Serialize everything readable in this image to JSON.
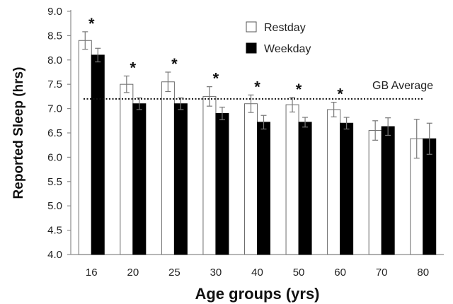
{
  "chart_data": {
    "type": "bar",
    "title": "",
    "xlabel": "Age groups (yrs)",
    "ylabel": "Reported Sleep (hrs)",
    "ylim": [
      4.0,
      9.0
    ],
    "yticks": [
      "4.0",
      "4.5",
      "5.0",
      "5.5",
      "6.0",
      "6.5",
      "7.0",
      "7.5",
      "8.0",
      "8.5",
      "9.0"
    ],
    "categories": [
      "16",
      "20",
      "25",
      "30",
      "40",
      "50",
      "60",
      "70",
      "80"
    ],
    "series": [
      {
        "name": "Restday",
        "fill": "#ffffff",
        "values": [
          8.4,
          7.5,
          7.55,
          7.25,
          7.1,
          7.08,
          6.98,
          6.55,
          6.38
        ],
        "errors": [
          0.18,
          0.17,
          0.2,
          0.2,
          0.18,
          0.15,
          0.15,
          0.2,
          0.4
        ]
      },
      {
        "name": "Weekday",
        "fill": "#000000",
        "values": [
          8.1,
          7.1,
          7.1,
          6.9,
          6.72,
          6.72,
          6.7,
          6.63,
          6.38
        ],
        "errors": [
          0.14,
          0.12,
          0.12,
          0.13,
          0.14,
          0.1,
          0.12,
          0.18,
          0.32
        ]
      }
    ],
    "significance_marker": "*",
    "significant_categories": [
      "16",
      "20",
      "25",
      "30",
      "40",
      "50",
      "60"
    ],
    "reference_line": {
      "label": "GB Average",
      "value": 7.2,
      "style": "dotted"
    },
    "legend_position": "top-right"
  }
}
